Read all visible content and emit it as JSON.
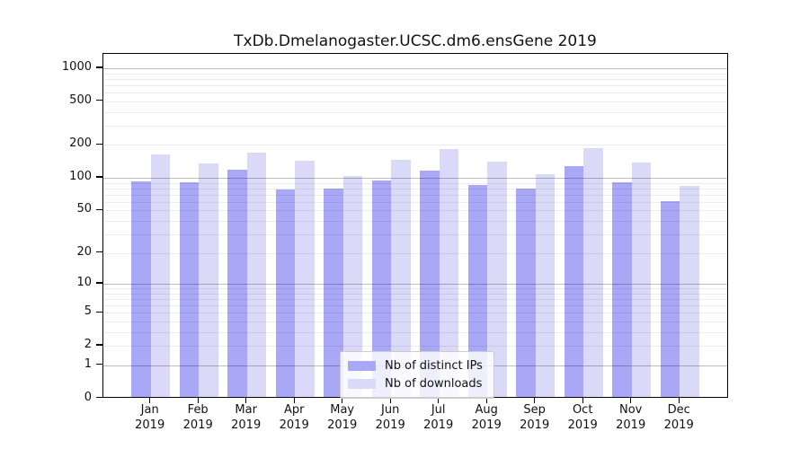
{
  "title": "TxDb.Dmelanogaster.UCSC.dm6.ensGene 2019",
  "colors": {
    "ips_bar": "#a8a8f6",
    "downloads_bar": "#dadaf8",
    "axis": "#000000"
  },
  "legend": {
    "items": [
      {
        "label": "Nb of distinct IPs",
        "color_key": "ips_bar"
      },
      {
        "label": "Nb of downloads",
        "color_key": "downloads_bar"
      }
    ]
  },
  "y_axis": {
    "tick_values": [
      0,
      1,
      2,
      5,
      10,
      20,
      50,
      100,
      200,
      500,
      1000
    ]
  },
  "x_axis": {
    "months": [
      "Jan",
      "Feb",
      "Mar",
      "Apr",
      "May",
      "Jun",
      "Jul",
      "Aug",
      "Sep",
      "Oct",
      "Nov",
      "Dec"
    ],
    "year": "2019"
  },
  "chart_data": {
    "type": "bar",
    "title": "TxDb.Dmelanogaster.UCSC.dm6.ensGene 2019",
    "categories": [
      "Jan 2019",
      "Feb 2019",
      "Mar 2019",
      "Apr 2019",
      "May 2019",
      "Jun 2019",
      "Jul 2019",
      "Aug 2019",
      "Sep 2019",
      "Oct 2019",
      "Nov 2019",
      "Dec 2019"
    ],
    "series": [
      {
        "name": "Nb of distinct IPs",
        "values": [
          90,
          89,
          115,
          76,
          78,
          91,
          114,
          84,
          77,
          125,
          88,
          59
        ]
      },
      {
        "name": "Nb of downloads",
        "values": [
          158,
          132,
          166,
          140,
          101,
          143,
          178,
          137,
          105,
          180,
          135,
          82
        ]
      }
    ],
    "xlabel": "",
    "ylabel": "",
    "y_scale": "log10(1+x)",
    "y_tick_values": [
      0,
      1,
      2,
      5,
      10,
      20,
      50,
      100,
      200,
      500,
      1000
    ],
    "ylim_top": 1250,
    "grid": "horizontal, minor + major (log decades), drawn over bars",
    "legend_position": "inside bottom-center"
  }
}
